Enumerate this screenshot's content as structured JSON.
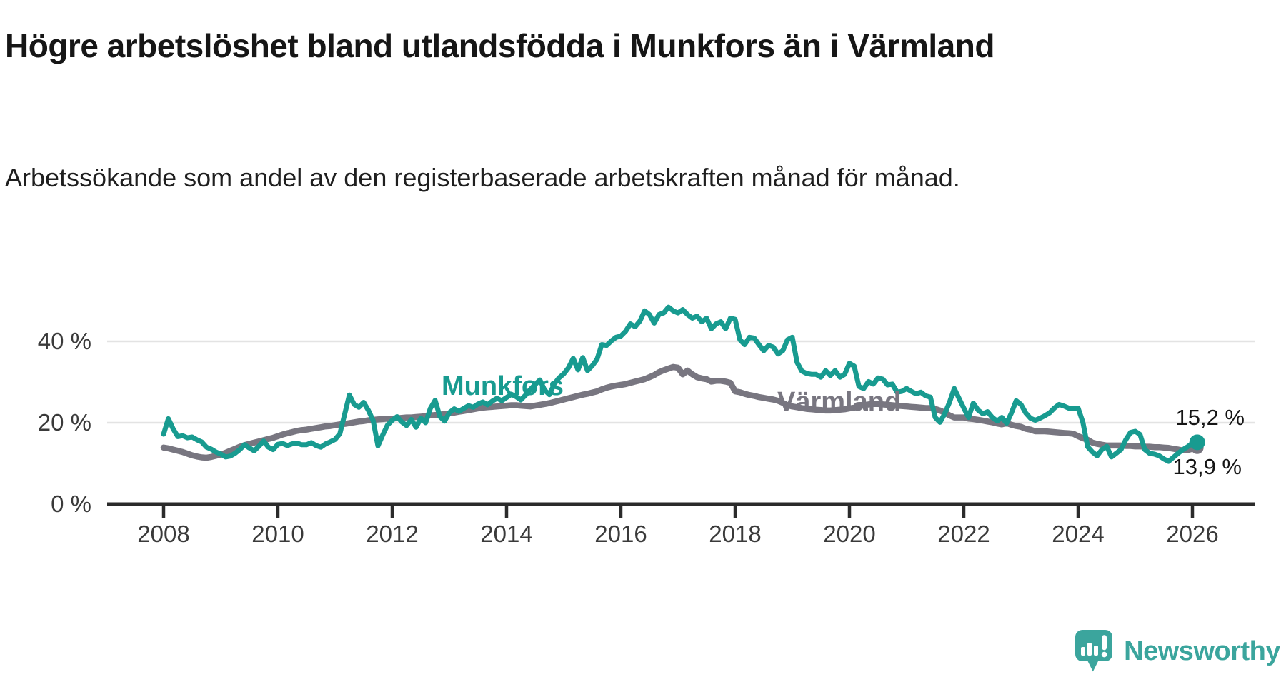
{
  "title": "Högre arbetslöshet bland utlandsfödda i Munkfors än i Värmland",
  "subtitle": "Arbetssökande som andel av den registerbaserade arbetskraften månad för månad.",
  "branding": {
    "logo_text": "Newsworthy",
    "logo_icon": "newsworthy-chart-bubble-icon"
  },
  "colors": {
    "munkfors": "#189b90",
    "varmland": "#787680",
    "grid": "#e3e3e3",
    "axis": "#2b2b2b",
    "title_text": "#161616",
    "tick_text": "#3a3a3a",
    "value_label_text": "#151515",
    "brand": "#3ba59d"
  },
  "chart_data": {
    "type": "line",
    "frequency": "monthly",
    "x_start": "2008-01",
    "x_end": "2026-02",
    "x_ticks": [
      2008,
      2010,
      2012,
      2014,
      2016,
      2018,
      2020,
      2022,
      2024,
      2026
    ],
    "y_ticks": [
      {
        "value": 0,
        "label": "0 %"
      },
      {
        "value": 20,
        "label": "20 %"
      },
      {
        "value": 40,
        "label": "40 %"
      }
    ],
    "ylim": [
      0,
      52
    ],
    "grid": "horizontal-only",
    "legend": "inline-series-labels",
    "series": [
      {
        "name": "Munkfors",
        "color": "#189b90",
        "end_label": "15,2 %",
        "end_value": 15.2,
        "end_dot": true,
        "values": [
          17.2,
          21.0,
          18.5,
          16.6,
          16.8,
          16.3,
          16.5,
          15.8,
          15.3,
          14.0,
          13.5,
          12.8,
          12.3,
          11.6,
          11.8,
          12.5,
          13.4,
          14.6,
          13.8,
          13.1,
          14.2,
          15.5,
          14.0,
          13.4,
          14.7,
          14.9,
          14.4,
          14.8,
          15.0,
          14.6,
          14.6,
          15.1,
          14.4,
          14.0,
          14.8,
          15.3,
          15.9,
          17.3,
          22.0,
          26.8,
          24.5,
          23.8,
          25.0,
          23.0,
          20.5,
          14.3,
          17.0,
          19.4,
          20.6,
          21.5,
          20.2,
          19.3,
          20.8,
          18.9,
          21.1,
          20.0,
          23.5,
          25.5,
          21.5,
          20.4,
          22.5,
          23.4,
          22.8,
          23.5,
          24.2,
          23.8,
          24.6,
          25.1,
          24.4,
          25.3,
          26.0,
          25.4,
          26.2,
          27.0,
          26.4,
          25.6,
          26.8,
          28.2,
          29.4,
          30.5,
          28.0,
          26.9,
          29.5,
          31.0,
          32.0,
          33.5,
          35.8,
          33.0,
          36.0,
          32.8,
          34.0,
          35.6,
          39.2,
          39.0,
          40.1,
          41.0,
          41.3,
          42.5,
          44.3,
          43.6,
          45.0,
          47.5,
          46.6,
          44.5,
          46.6,
          47.0,
          48.4,
          47.5,
          47.0,
          47.8,
          46.6,
          45.7,
          46.2,
          44.8,
          45.7,
          43.1,
          44.3,
          44.8,
          43.1,
          45.7,
          45.4,
          40.4,
          39.2,
          41.0,
          40.8,
          39.2,
          37.7,
          39.0,
          38.6,
          36.9,
          37.7,
          40.4,
          41.0,
          34.8,
          32.7,
          32.1,
          31.9,
          31.9,
          31.2,
          32.8,
          31.6,
          32.8,
          31.2,
          31.9,
          34.6,
          33.9,
          28.9,
          28.4,
          30.1,
          29.5,
          31.0,
          30.7,
          29.3,
          29.5,
          27.5,
          27.7,
          28.4,
          27.7,
          27.1,
          27.5,
          26.6,
          26.3,
          21.3,
          20.1,
          22.2,
          25.0,
          28.4,
          26.0,
          23.6,
          21.3,
          24.8,
          23.1,
          22.2,
          22.7,
          21.3,
          20.4,
          21.3,
          19.9,
          22.4,
          25.4,
          24.5,
          22.4,
          21.1,
          20.6,
          21.1,
          21.7,
          22.4,
          23.6,
          24.5,
          24.1,
          23.6,
          23.6,
          23.6,
          20.1,
          14.1,
          12.8,
          11.9,
          13.4,
          14.2,
          11.6,
          12.5,
          13.4,
          15.8,
          17.6,
          17.9,
          17.1,
          13.4,
          12.5,
          12.3,
          11.9,
          11.1,
          10.5,
          11.5,
          12.5,
          13.4,
          14.1,
          15.0,
          15.2
        ]
      },
      {
        "name": "Värmland",
        "color": "#787680",
        "end_label": "13,9 %",
        "end_value": 13.9,
        "end_dot": true,
        "values": [
          13.9,
          13.7,
          13.4,
          13.1,
          12.8,
          12.4,
          12.0,
          11.7,
          11.5,
          11.4,
          11.6,
          11.9,
          12.2,
          12.6,
          13.1,
          13.6,
          14.1,
          14.5,
          14.8,
          15.1,
          15.4,
          15.7,
          16.0,
          16.3,
          16.7,
          17.1,
          17.4,
          17.7,
          18.0,
          18.2,
          18.3,
          18.5,
          18.7,
          18.9,
          19.1,
          19.2,
          19.4,
          19.6,
          19.7,
          19.9,
          20.1,
          20.3,
          20.4,
          20.6,
          20.7,
          20.8,
          20.9,
          21.0,
          21.0,
          21.1,
          21.2,
          21.3,
          21.3,
          21.4,
          21.5,
          21.6,
          21.8,
          21.9,
          22.0,
          22.1,
          22.3,
          22.5,
          22.7,
          22.9,
          23.1,
          23.3,
          23.5,
          23.7,
          23.8,
          23.9,
          24.0,
          24.1,
          24.2,
          24.3,
          24.3,
          24.2,
          24.1,
          24.0,
          24.2,
          24.4,
          24.6,
          24.8,
          25.1,
          25.4,
          25.7,
          26.0,
          26.3,
          26.6,
          26.9,
          27.1,
          27.4,
          27.7,
          28.2,
          28.6,
          28.9,
          29.1,
          29.3,
          29.5,
          29.8,
          30.1,
          30.4,
          30.7,
          31.2,
          31.7,
          32.4,
          32.9,
          33.3,
          33.7,
          33.5,
          31.9,
          32.8,
          31.9,
          31.2,
          30.9,
          30.7,
          30.1,
          30.3,
          30.3,
          30.1,
          29.8,
          27.7,
          27.5,
          27.1,
          26.8,
          26.6,
          26.3,
          26.1,
          25.9,
          25.7,
          25.4,
          24.9,
          24.3,
          24.0,
          23.8,
          23.6,
          23.4,
          23.3,
          23.2,
          23.1,
          23.0,
          23.0,
          23.1,
          23.2,
          23.3,
          23.5,
          23.7,
          24.0,
          24.3,
          24.5,
          24.6,
          24.6,
          24.5,
          24.4,
          24.3,
          24.2,
          24.1,
          24.0,
          23.9,
          23.8,
          23.7,
          23.6,
          23.6,
          23.4,
          23.0,
          22.5,
          21.8,
          21.3,
          21.3,
          21.3,
          21.0,
          20.9,
          20.7,
          20.5,
          20.3,
          20.1,
          19.8,
          19.6,
          19.9,
          19.5,
          19.2,
          19.0,
          18.5,
          18.3,
          17.9,
          17.9,
          17.9,
          17.8,
          17.7,
          17.6,
          17.5,
          17.4,
          17.3,
          16.7,
          16.2,
          15.8,
          15.1,
          14.8,
          14.6,
          14.4,
          14.4,
          14.4,
          14.4,
          14.3,
          14.3,
          14.2,
          14.2,
          14.1,
          14.1,
          14.0,
          14.0,
          13.9,
          13.8,
          13.6,
          13.4,
          13.2,
          13.3,
          13.6,
          13.9
        ]
      }
    ]
  }
}
